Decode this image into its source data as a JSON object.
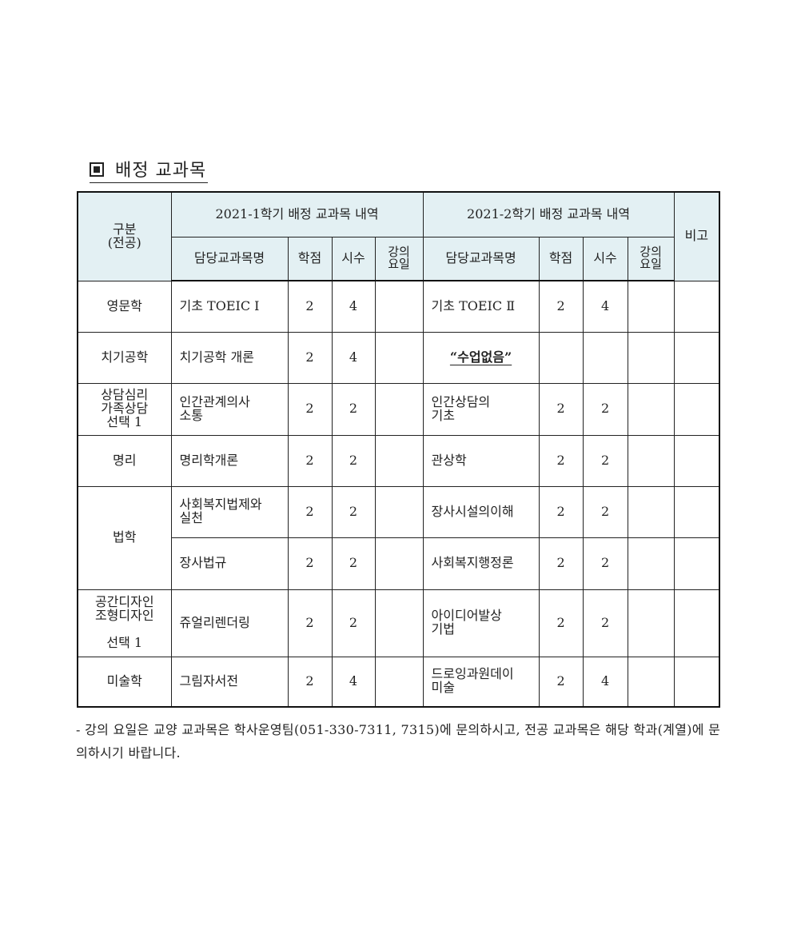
{
  "title": "배정 교과목",
  "header": {
    "category": "구분\n(전공)",
    "sem1": "2021-1학기 배정 교과목 내역",
    "sem2": "2021-2학기 배정 교과목 내역",
    "remarks": "비고",
    "course": "담당교과목명",
    "credits": "학점",
    "hours": "시수",
    "day": "강의\n요일"
  },
  "rows": [
    {
      "major": "영문학",
      "c1": "기초 TOEIC Ⅰ",
      "cr1": "2",
      "h1": "4",
      "d1": "",
      "c2": "기초 TOEIC Ⅱ",
      "cr2": "2",
      "h2": "4",
      "d2": "",
      "note": ""
    },
    {
      "major": "치기공학",
      "c1": "치기공학 개론",
      "cr1": "2",
      "h1": "4",
      "d1": "",
      "c2": "“수업없음”",
      "cr2": "",
      "h2": "",
      "d2": "",
      "note": "",
      "no_class": true
    },
    {
      "major": "상담심리\n가족상담\n선택 1",
      "c1": "인간관계의사\n소통",
      "cr1": "2",
      "h1": "2",
      "d1": "",
      "c2": "인간상담의\n기초",
      "cr2": "2",
      "h2": "2",
      "d2": "",
      "note": ""
    },
    {
      "major": "명리",
      "c1": "명리학개론",
      "cr1": "2",
      "h1": "2",
      "d1": "",
      "c2": "관상학",
      "cr2": "2",
      "h2": "2",
      "d2": "",
      "note": ""
    },
    {
      "major": "법학",
      "c1": "사회복지법제와\n실천",
      "cr1": "2",
      "h1": "2",
      "d1": "",
      "c2": "장사시설의이해",
      "cr2": "2",
      "h2": "2",
      "d2": "",
      "note": ""
    },
    {
      "major": null,
      "c1": "장사법규",
      "cr1": "2",
      "h1": "2",
      "d1": "",
      "c2": "사회복지행정론",
      "cr2": "2",
      "h2": "2",
      "d2": "",
      "note": ""
    },
    {
      "major": "공간디자인\n조형디자인\n\n선택 1",
      "c1": "쥬얼리렌더링",
      "cr1": "2",
      "h1": "2",
      "d1": "",
      "c2": "아이디어발상\n기법",
      "cr2": "2",
      "h2": "2",
      "d2": "",
      "note": ""
    },
    {
      "major": "미술학",
      "c1": "그림자서전",
      "cr1": "2",
      "h1": "4",
      "d1": "",
      "c2": "드로잉과원데이\n미술",
      "cr2": "2",
      "h2": "4",
      "d2": "",
      "note": ""
    }
  ],
  "footnote": "- 강의 요일은 교양 교과목은 학사운영팀(051-330-7311, 7315)에 문의하시고, 전공 교과목은 해당 학과(계열)에 문의하시기 바랍니다.",
  "colors": {
    "header_bg": "#e3f0f3",
    "border": "#222222"
  }
}
